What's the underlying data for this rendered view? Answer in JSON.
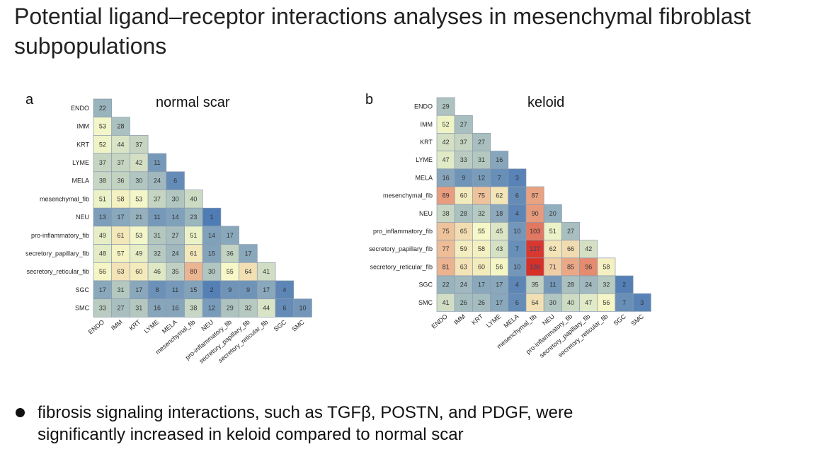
{
  "slide": {
    "title": "Potential ligand–receptor interactions analyses in mesenchymal fibroblast subpopulations",
    "bullet": "fibrosis signaling interactions, such as TGFβ, POSTN, and PDGF, were significantly increased in keloid compared to normal scar"
  },
  "chart_data": [
    {
      "type": "heatmap",
      "panel_label": "a",
      "title": "normal scar",
      "rows": [
        "ENDO",
        "IMM",
        "KRT",
        "LYME",
        "MELA",
        "mesenchymal_fib",
        "NEU",
        "pro-inflammatory_fib",
        "secretory_papillary_fib",
        "secretory_reticular_fib",
        "SGC",
        "SMC"
      ],
      "columns": [
        "ENDO",
        "IMM",
        "KRT",
        "LYME",
        "MELA",
        "mesenchymal_fib",
        "NEU",
        "pro-inflammatory_fib",
        "secretory_papillary_fib",
        "secretory_reticular_fib",
        "SGC",
        "SMC"
      ],
      "values": [
        [
          22
        ],
        [
          53,
          28
        ],
        [
          52,
          44,
          37
        ],
        [
          37,
          37,
          42,
          11
        ],
        [
          38,
          36,
          30,
          24,
          6
        ],
        [
          51,
          58,
          53,
          37,
          30,
          40
        ],
        [
          13,
          17,
          21,
          11,
          14,
          23,
          1
        ],
        [
          49,
          61,
          53,
          31,
          27,
          51,
          14,
          17
        ],
        [
          48,
          57,
          49,
          32,
          24,
          61,
          15,
          36,
          17
        ],
        [
          56,
          63,
          60,
          46,
          35,
          80,
          30,
          55,
          64,
          41
        ],
        [
          17,
          31,
          17,
          8,
          11,
          15,
          2,
          9,
          9,
          17,
          4
        ],
        [
          33,
          27,
          31,
          16,
          16,
          38,
          12,
          29,
          32,
          44,
          6,
          10
        ]
      ],
      "color_scale": {
        "low": "#4a78b4",
        "mid": "#f6f9c8",
        "high": "#d73027",
        "min": 0,
        "max": 130
      }
    },
    {
      "type": "heatmap",
      "panel_label": "b",
      "title": "keloid",
      "rows": [
        "ENDO",
        "IMM",
        "KRT",
        "LYME",
        "MELA",
        "mesenchymal_fib",
        "NEU",
        "pro_inflammatory_fib",
        "secretory_papillary_fib",
        "secretory_reticular_fib",
        "SGC",
        "SMC"
      ],
      "columns": [
        "ENDO",
        "IMM",
        "KRT",
        "LYME",
        "MELA",
        "mesenchymal_fib",
        "NEU",
        "pro-inflammatory_fib",
        "secretory_papillary_fib",
        "secretory_reticular_fib",
        "SGC",
        "SMC"
      ],
      "values": [
        [
          29
        ],
        [
          52,
          27
        ],
        [
          42,
          37,
          27
        ],
        [
          47,
          33,
          31,
          16
        ],
        [
          16,
          9,
          12,
          7,
          3
        ],
        [
          89,
          60,
          75,
          62,
          6,
          87
        ],
        [
          38,
          28,
          32,
          18,
          4,
          90,
          20
        ],
        [
          75,
          65,
          55,
          45,
          10,
          103,
          51,
          27
        ],
        [
          77,
          59,
          58,
          43,
          7,
          127,
          62,
          66,
          42
        ],
        [
          81,
          63,
          60,
          56,
          10,
          136,
          71,
          85,
          96,
          58
        ],
        [
          22,
          24,
          17,
          17,
          4,
          35,
          11,
          28,
          24,
          32,
          2
        ],
        [
          41,
          26,
          26,
          17,
          6,
          64,
          30,
          40,
          47,
          56,
          7,
          3
        ]
      ],
      "color_scale": {
        "low": "#4a78b4",
        "mid": "#f6f9c8",
        "high": "#d73027",
        "min": 0,
        "max": 130
      }
    }
  ]
}
